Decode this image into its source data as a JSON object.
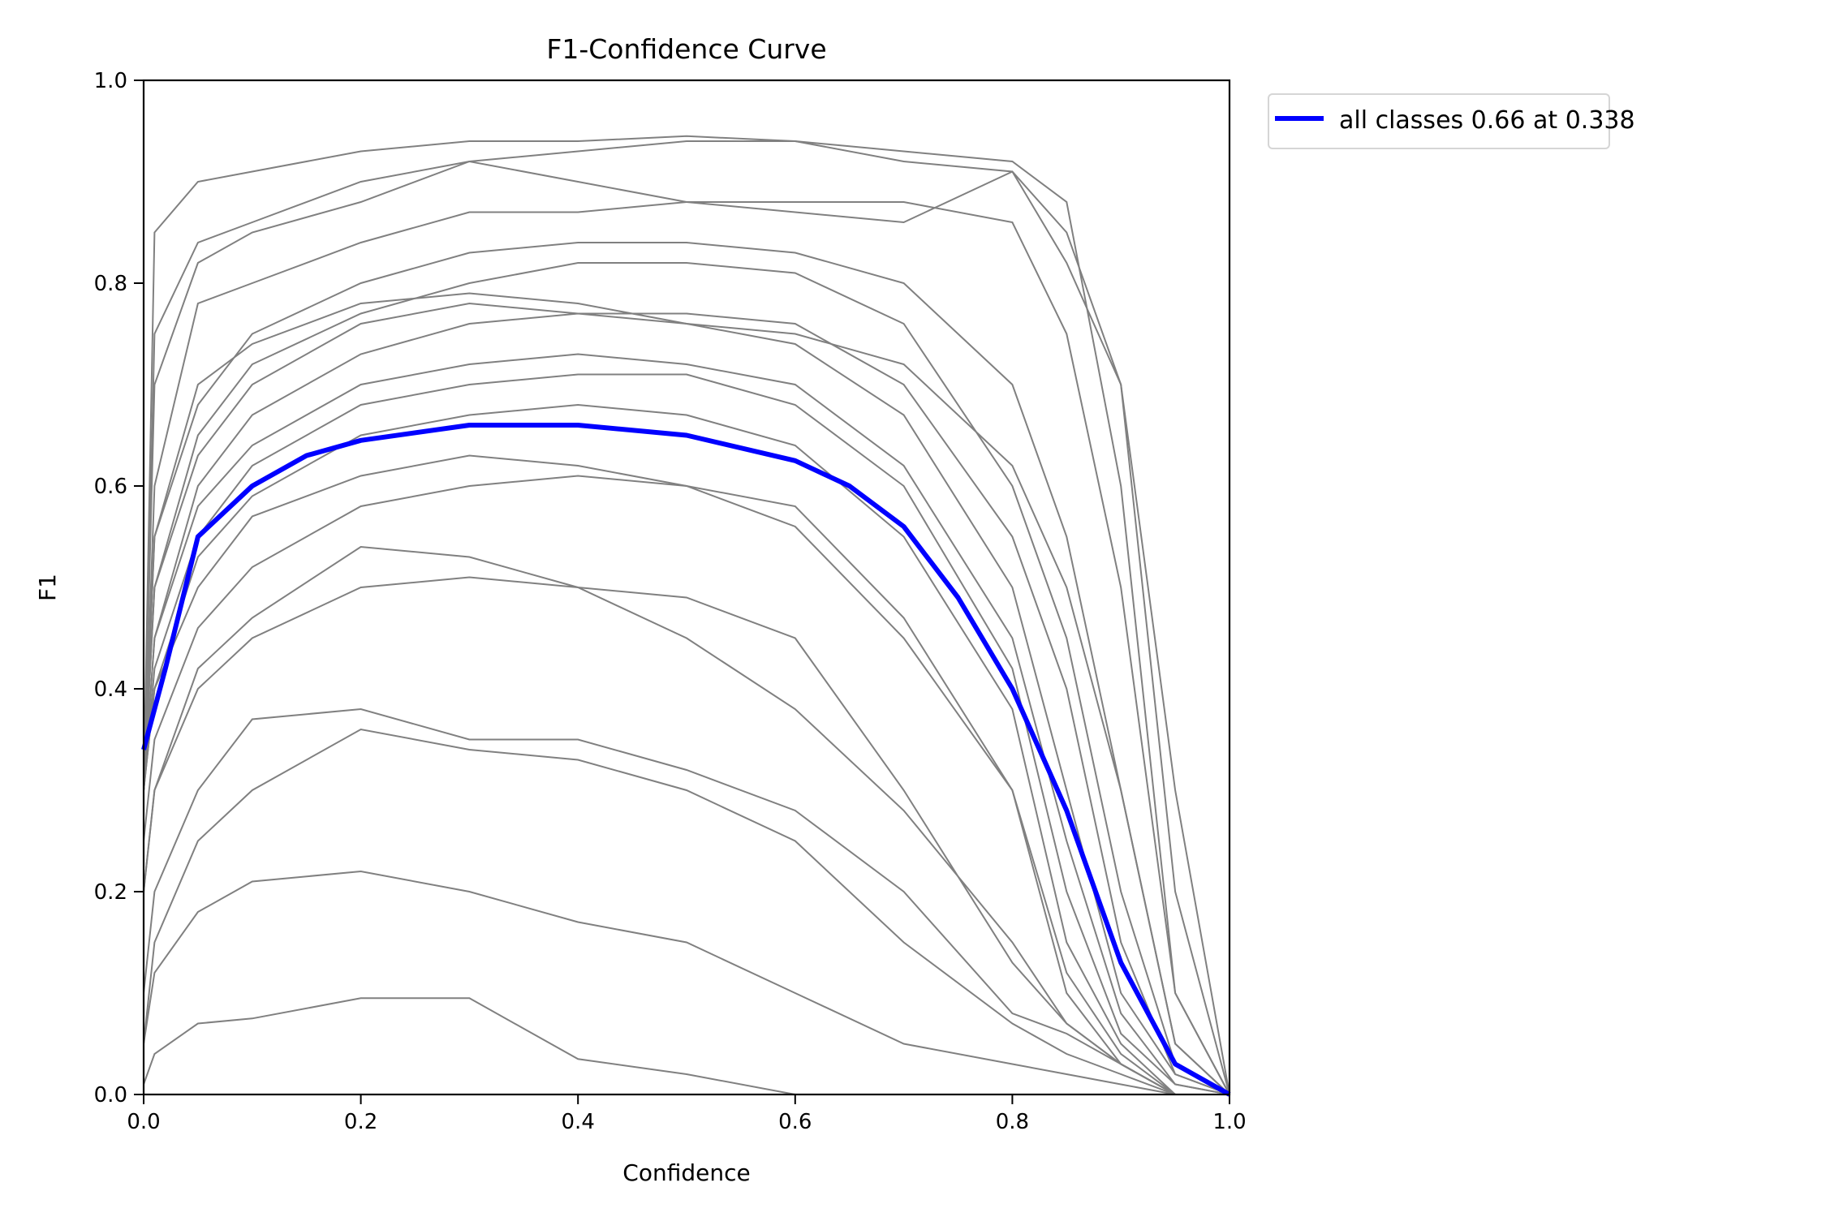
{
  "chart_data": {
    "type": "line",
    "title": "F1-Confidence Curve",
    "xlabel": "Confidence",
    "ylabel": "F1",
    "xlim": [
      0,
      1
    ],
    "ylim": [
      0,
      1
    ],
    "xticks": [
      "0.0",
      "0.2",
      "0.4",
      "0.6",
      "0.8",
      "1.0"
    ],
    "yticks": [
      "0.0",
      "0.2",
      "0.4",
      "0.6",
      "0.8",
      "1.0"
    ],
    "grid": false,
    "legend_placement": "outside-top-right",
    "class_curve_color": "#808080",
    "class_x": [
      0,
      0.01,
      0.05,
      0.1,
      0.2,
      0.3,
      0.4,
      0.5,
      0.6,
      0.7,
      0.8,
      0.85,
      0.9,
      0.95,
      1.0
    ],
    "class_curves": [
      [
        0.3,
        0.85,
        0.9,
        0.91,
        0.93,
        0.94,
        0.94,
        0.945,
        0.94,
        0.93,
        0.92,
        0.88,
        0.6,
        0.1,
        0
      ],
      [
        0.3,
        0.75,
        0.84,
        0.86,
        0.9,
        0.92,
        0.93,
        0.94,
        0.94,
        0.92,
        0.91,
        0.85,
        0.7,
        0.3,
        0
      ],
      [
        0.3,
        0.7,
        0.82,
        0.85,
        0.88,
        0.92,
        0.9,
        0.88,
        0.87,
        0.86,
        0.91,
        0.82,
        0.7,
        0.2,
        0
      ],
      [
        0.3,
        0.6,
        0.78,
        0.8,
        0.84,
        0.87,
        0.87,
        0.88,
        0.88,
        0.88,
        0.86,
        0.75,
        0.5,
        0.1,
        0
      ],
      [
        0.3,
        0.55,
        0.68,
        0.75,
        0.8,
        0.83,
        0.84,
        0.84,
        0.83,
        0.8,
        0.7,
        0.55,
        0.3,
        0.05,
        0
      ],
      [
        0.3,
        0.5,
        0.65,
        0.72,
        0.77,
        0.8,
        0.82,
        0.82,
        0.81,
        0.76,
        0.6,
        0.45,
        0.2,
        0.03,
        0
      ],
      [
        0.3,
        0.55,
        0.7,
        0.74,
        0.78,
        0.79,
        0.78,
        0.76,
        0.75,
        0.72,
        0.62,
        0.5,
        0.3,
        0.05,
        0
      ],
      [
        0.3,
        0.5,
        0.63,
        0.7,
        0.76,
        0.78,
        0.77,
        0.77,
        0.76,
        0.7,
        0.55,
        0.4,
        0.15,
        0.02,
        0
      ],
      [
        0.3,
        0.45,
        0.6,
        0.67,
        0.73,
        0.76,
        0.77,
        0.76,
        0.74,
        0.67,
        0.5,
        0.3,
        0.1,
        0.02,
        0
      ],
      [
        0.3,
        0.45,
        0.58,
        0.64,
        0.7,
        0.72,
        0.73,
        0.72,
        0.7,
        0.62,
        0.45,
        0.25,
        0.08,
        0.01,
        0
      ],
      [
        0.3,
        0.42,
        0.55,
        0.62,
        0.68,
        0.7,
        0.71,
        0.71,
        0.68,
        0.6,
        0.42,
        0.2,
        0.06,
        0.01,
        0
      ],
      [
        0.3,
        0.4,
        0.53,
        0.59,
        0.65,
        0.67,
        0.68,
        0.67,
        0.64,
        0.55,
        0.38,
        0.15,
        0.05,
        0,
        0
      ],
      [
        0.3,
        0.4,
        0.5,
        0.57,
        0.61,
        0.63,
        0.62,
        0.6,
        0.56,
        0.45,
        0.3,
        0.12,
        0.04,
        0,
        0
      ],
      [
        0.25,
        0.35,
        0.46,
        0.52,
        0.58,
        0.6,
        0.61,
        0.6,
        0.58,
        0.47,
        0.3,
        0.1,
        0.03,
        0,
        0
      ],
      [
        0.2,
        0.3,
        0.42,
        0.47,
        0.54,
        0.53,
        0.5,
        0.45,
        0.38,
        0.28,
        0.15,
        0.07,
        0.03,
        0,
        0
      ],
      [
        0.2,
        0.3,
        0.4,
        0.45,
        0.5,
        0.51,
        0.5,
        0.49,
        0.45,
        0.3,
        0.13,
        0.07,
        0.03,
        0,
        0
      ],
      [
        0.1,
        0.2,
        0.3,
        0.37,
        0.38,
        0.35,
        0.35,
        0.32,
        0.28,
        0.2,
        0.08,
        0.06,
        0.03,
        0,
        0
      ],
      [
        0.05,
        0.15,
        0.25,
        0.3,
        0.36,
        0.34,
        0.33,
        0.3,
        0.25,
        0.15,
        0.07,
        0.04,
        0.02,
        0,
        0
      ],
      [
        0.05,
        0.12,
        0.18,
        0.21,
        0.22,
        0.2,
        0.17,
        0.15,
        0.1,
        0.05,
        0.03,
        0.02,
        0.01,
        0,
        0
      ],
      [
        0.01,
        0.04,
        0.07,
        0.075,
        0.095,
        0.095,
        0.035,
        0.02,
        0,
        0,
        0,
        0,
        0,
        0,
        0
      ]
    ],
    "series": [
      {
        "name": "all classes 0.66 at 0.338",
        "color": "#0000ff",
        "x": [
          0,
          0.02,
          0.05,
          0.1,
          0.15,
          0.2,
          0.3,
          0.338,
          0.4,
          0.5,
          0.6,
          0.65,
          0.7,
          0.75,
          0.8,
          0.85,
          0.9,
          0.95,
          1.0
        ],
        "y": [
          0.34,
          0.42,
          0.55,
          0.6,
          0.63,
          0.645,
          0.66,
          0.66,
          0.66,
          0.65,
          0.625,
          0.6,
          0.56,
          0.49,
          0.4,
          0.28,
          0.13,
          0.03,
          0.0
        ]
      }
    ]
  }
}
